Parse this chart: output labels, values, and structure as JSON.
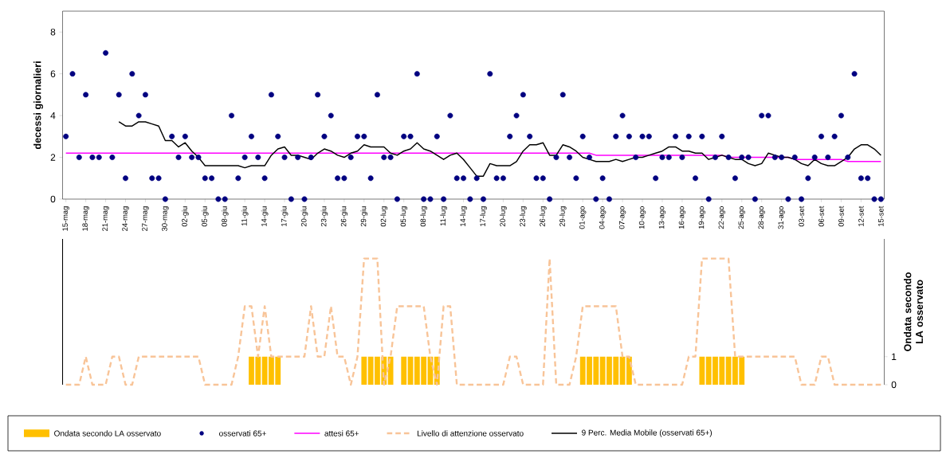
{
  "chart_data": [
    {
      "type": "scatter",
      "ylabel": "decessi giornalieri",
      "ylim": [
        0,
        9
      ],
      "yticks": [
        0,
        2,
        4,
        6,
        8
      ],
      "grid": false,
      "legend": "bottom",
      "categories": [
        "15-mag",
        null,
        null,
        "18-mag",
        null,
        null,
        "21-mag",
        null,
        null,
        "24-mag",
        null,
        null,
        "27-mag",
        null,
        null,
        "30-mag",
        null,
        null,
        "02-giu",
        null,
        null,
        "05-giu",
        null,
        null,
        "08-giu",
        null,
        null,
        "11-giu",
        null,
        null,
        "14-giu",
        null,
        null,
        "17-giu",
        null,
        null,
        "20-giu",
        null,
        null,
        "23-giu",
        null,
        null,
        "26-giu",
        null,
        null,
        "29-giu",
        null,
        null,
        "02-lug",
        null,
        null,
        "05-lug",
        null,
        null,
        "08-lug",
        null,
        null,
        "11-lug",
        null,
        null,
        "14-lug",
        null,
        null,
        "17-lug",
        null,
        null,
        "20-lug",
        null,
        null,
        "23-lug",
        null,
        null,
        "26-lug",
        null,
        null,
        "29-lug",
        null,
        null,
        "01-ago",
        null,
        null,
        "04-ago",
        null,
        null,
        "07-ago",
        null,
        null,
        "10-ago",
        null,
        null,
        "13-ago",
        null,
        null,
        "16-ago",
        null,
        null,
        "19-ago",
        null,
        null,
        "22-ago",
        null,
        null,
        "25-ago",
        null,
        null,
        "28-ago",
        null,
        null,
        "31-ago",
        null,
        null,
        "03-set",
        null,
        null,
        "06-set",
        null,
        null,
        "09-set",
        null,
        null,
        "12-set",
        null,
        null,
        "15-set"
      ],
      "series": [
        {
          "name": "osservati 65+",
          "marker": "circle",
          "color": "#000080",
          "values": [
            3,
            6,
            2,
            5,
            2,
            2,
            7,
            2,
            5,
            1,
            6,
            4,
            5,
            1,
            1,
            0,
            3,
            2,
            3,
            2,
            2,
            1,
            1,
            0,
            0,
            4,
            1,
            2,
            3,
            2,
            1,
            5,
            3,
            2,
            0,
            2,
            0,
            2,
            5,
            3,
            4,
            1,
            1,
            2,
            3,
            3,
            1,
            5,
            2,
            2,
            0,
            3,
            3,
            6,
            0,
            0,
            3,
            0,
            4,
            1,
            1,
            0,
            1,
            0,
            6,
            1,
            1,
            3,
            4,
            5,
            3,
            1,
            1,
            0,
            2,
            5,
            2,
            1,
            3,
            2,
            0,
            1,
            0,
            3,
            4,
            3,
            2,
            3,
            3,
            1,
            2,
            2,
            3,
            2,
            3,
            1,
            3,
            0,
            2,
            3,
            2,
            1,
            2,
            2,
            0,
            4,
            4,
            2,
            2,
            0,
            2,
            0,
            1,
            2,
            3,
            2,
            3,
            4,
            2,
            6,
            1,
            1,
            0,
            0
          ]
        },
        {
          "name": "attesi 65+",
          "type": "line",
          "color": "#ff00ff",
          "values": [
            2.2,
            2.2,
            2.2,
            2.2,
            2.2,
            2.2,
            2.2,
            2.2,
            2.2,
            2.2,
            2.2,
            2.2,
            2.2,
            2.2,
            2.2,
            2.2,
            2.2,
            2.2,
            2.2,
            2.2,
            2.2,
            2.2,
            2.2,
            2.2,
            2.2,
            2.2,
            2.2,
            2.2,
            2.2,
            2.2,
            2.2,
            2.2,
            2.2,
            2.2,
            2.2,
            2.2,
            2.2,
            2.2,
            2.2,
            2.2,
            2.2,
            2.2,
            2.2,
            2.2,
            2.2,
            2.2,
            2.2,
            2.2,
            2.2,
            2.2,
            2.2,
            2.2,
            2.2,
            2.2,
            2.2,
            2.2,
            2.2,
            2.2,
            2.2,
            2.2,
            2.2,
            2.2,
            2.2,
            2.2,
            2.2,
            2.2,
            2.2,
            2.2,
            2.2,
            2.2,
            2.2,
            2.2,
            2.2,
            2.2,
            2.2,
            2.2,
            2.2,
            2.2,
            2.2,
            2.2,
            2.1,
            2.1,
            2.1,
            2.1,
            2.1,
            2.1,
            2.1,
            2.1,
            2.1,
            2.1,
            2.1,
            2.1,
            2.1,
            2.1,
            2.1,
            2.1,
            2.1,
            2.1,
            2.1,
            2.1,
            2.0,
            2.0,
            2.0,
            2.0,
            2.0,
            2.0,
            2.0,
            2.0,
            2.0,
            2.0,
            1.9,
            1.9,
            1.9,
            1.9,
            1.9,
            1.9,
            1.9,
            1.9,
            1.8,
            1.8,
            1.8,
            1.8,
            1.8,
            1.8
          ]
        },
        {
          "name": "9 Perc. Media Mobile (osservati 65+)",
          "type": "line",
          "color": "#000000",
          "values": [
            null,
            null,
            null,
            null,
            null,
            null,
            null,
            null,
            3.7,
            3.5,
            3.5,
            3.7,
            3.7,
            3.6,
            3.5,
            2.8,
            2.8,
            2.5,
            2.7,
            2.3,
            2.0,
            1.6,
            1.6,
            1.6,
            1.6,
            1.6,
            1.6,
            1.5,
            1.6,
            1.6,
            1.6,
            2.1,
            2.4,
            2.5,
            2.1,
            2.1,
            2.0,
            1.9,
            2.2,
            2.4,
            2.3,
            2.1,
            2.0,
            2.2,
            2.3,
            2.6,
            2.5,
            2.5,
            2.5,
            2.2,
            2.1,
            2.3,
            2.4,
            2.7,
            2.4,
            2.3,
            2.1,
            1.9,
            2.1,
            2.2,
            1.9,
            1.5,
            1.1,
            1.1,
            1.7,
            1.6,
            1.6,
            1.6,
            1.8,
            2.3,
            2.6,
            2.6,
            2.7,
            2.1,
            2.1,
            2.6,
            2.5,
            2.3,
            2.0,
            1.9,
            1.8,
            1.8,
            1.8,
            1.9,
            1.8,
            1.9,
            2.0,
            2.0,
            2.1,
            2.2,
            2.3,
            2.5,
            2.5,
            2.3,
            2.3,
            2.2,
            2.2,
            1.9,
            2.0,
            2.1,
            2.0,
            1.9,
            1.9,
            1.7,
            1.6,
            1.7,
            2.2,
            2.1,
            2.0,
            2.0,
            1.9,
            1.7,
            1.6,
            1.9,
            1.7,
            1.6,
            1.6,
            1.8,
            2.0,
            2.4,
            2.6,
            2.6,
            2.4,
            2.1
          ]
        }
      ]
    },
    {
      "type": "bar",
      "y2label": "Ondata secondo LA osservato",
      "y2lim": [
        0,
        5.2
      ],
      "y2ticks": [
        0,
        1
      ],
      "tick_labels": "y",
      "legend": "bottom",
      "categories": [
        null,
        null,
        null,
        null,
        null,
        null,
        null,
        null,
        null,
        null,
        null,
        null,
        null,
        null,
        null,
        null,
        null,
        null,
        null,
        null,
        null,
        null,
        null,
        null,
        null,
        null,
        null,
        null,
        null,
        null,
        null,
        null,
        null,
        null,
        null,
        null,
        null,
        null,
        null,
        null,
        null,
        null,
        null,
        null,
        null,
        null,
        null,
        null,
        null,
        null,
        null,
        null,
        null,
        null,
        null,
        null,
        null,
        null,
        null,
        null,
        null,
        null,
        null,
        null,
        null,
        null,
        null,
        null,
        null,
        null,
        null,
        null,
        null,
        null,
        null,
        null,
        null,
        null,
        null,
        null,
        null,
        null,
        null,
        null,
        null,
        null,
        null,
        null,
        null,
        null,
        null,
        null,
        null,
        null,
        null,
        null,
        null,
        null,
        null,
        null,
        null,
        null,
        null,
        null,
        null,
        null,
        null,
        null,
        null,
        null,
        null,
        null,
        null,
        null,
        null,
        null,
        null,
        null,
        null,
        null,
        null,
        null,
        null,
        null
      ],
      "series": [
        {
          "name": "Ondata secondo LA osservato",
          "axis": "y2",
          "color": "#ffc000",
          "values": [
            0,
            0,
            0,
            0,
            0,
            0,
            0,
            0,
            0,
            0,
            0,
            0,
            0,
            0,
            0,
            0,
            0,
            0,
            0,
            0,
            0,
            0,
            0,
            0,
            0,
            0,
            0,
            0,
            1,
            1,
            1,
            1,
            1,
            0,
            0,
            0,
            0,
            0,
            0,
            0,
            0,
            0,
            0,
            0,
            0,
            1,
            1,
            1,
            1,
            1,
            0,
            1,
            1,
            1,
            1,
            1,
            1,
            0,
            0,
            0,
            0,
            0,
            0,
            0,
            0,
            0,
            0,
            0,
            0,
            0,
            0,
            0,
            0,
            0,
            0,
            0,
            0,
            0,
            1,
            1,
            1,
            1,
            1,
            1,
            1,
            1,
            0,
            0,
            0,
            0,
            0,
            0,
            0,
            0,
            0,
            0,
            1,
            1,
            1,
            1,
            1,
            1,
            1,
            0,
            0,
            0,
            0,
            0,
            0,
            0,
            0,
            0,
            0,
            0,
            0,
            0,
            0,
            0,
            0,
            0,
            0,
            0,
            0,
            0
          ]
        },
        {
          "name": "Livello di attenzione osservato",
          "type": "line",
          "axis": "y2",
          "line_style": "dashed",
          "color": "#f8c498",
          "values": [
            0,
            0,
            0,
            1,
            0,
            0,
            0,
            1,
            1,
            0,
            0,
            1,
            1,
            1,
            1,
            1,
            1,
            1,
            1,
            1,
            1,
            0,
            0,
            0,
            0,
            0,
            1,
            2.8,
            2.8,
            1,
            2.8,
            1,
            1,
            1,
            1,
            1,
            1,
            2.8,
            1,
            1,
            2.8,
            1,
            1,
            0,
            1,
            4.5,
            4.5,
            4.5,
            0,
            1,
            2.8,
            2.8,
            2.8,
            2.8,
            2.8,
            1,
            0,
            2.8,
            2.8,
            0,
            0,
            0,
            0,
            0,
            0,
            0,
            0,
            1,
            1,
            0,
            0,
            0,
            0,
            4.5,
            0,
            0,
            0,
            1,
            2.8,
            2.8,
            2.8,
            2.8,
            2.8,
            2.8,
            1,
            1,
            0,
            0,
            0,
            0,
            0,
            0,
            0,
            0,
            1,
            1,
            4.5,
            4.5,
            4.5,
            4.5,
            4.5,
            1,
            1,
            1,
            1,
            1,
            1,
            1,
            1,
            1,
            1,
            0,
            0,
            0,
            1,
            1,
            0,
            0,
            0,
            0,
            0,
            0,
            0,
            0
          ]
        }
      ]
    }
  ]
}
